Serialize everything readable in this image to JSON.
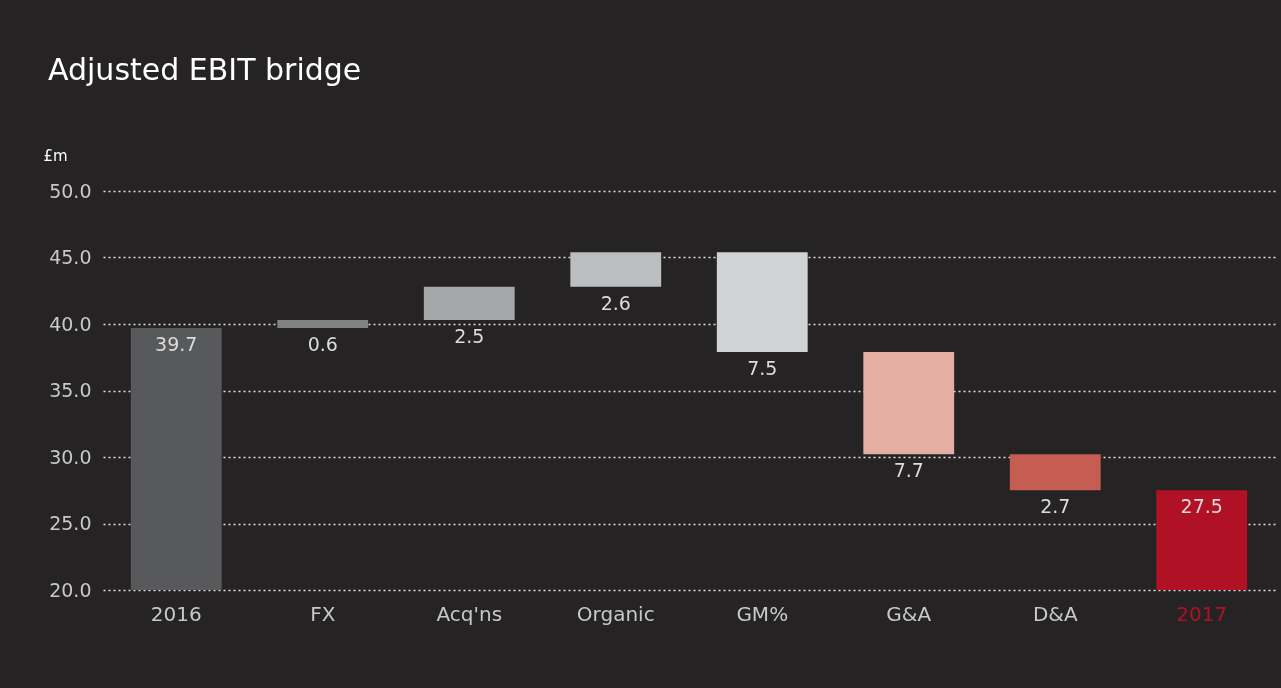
{
  "chart_data": {
    "type": "bar",
    "title": "Adjusted EBIT bridge",
    "ylabel": "£m",
    "categories": [
      "2016",
      "FX",
      "Acq'ns",
      "Organic",
      "GM%",
      "G&A",
      "D&A",
      "2017"
    ],
    "values": [
      39.7,
      0.6,
      2.5,
      2.6,
      7.5,
      7.7,
      2.7,
      27.5
    ],
    "base": [
      null,
      39.7,
      40.3,
      42.8,
      37.9,
      30.2,
      27.5,
      null
    ],
    "colors": [
      "#58595b",
      "#818284",
      "#a6a7a9",
      "#bcbdbf",
      "#d1d2d4",
      "#e3afa2",
      "#c65d52",
      "#b01125"
    ],
    "ylim": [
      20,
      50
    ],
    "yticks": [
      {
        "value": 20,
        "label": "20.0"
      },
      {
        "value": 25,
        "label": "25.0"
      },
      {
        "value": 30,
        "label": "30.0"
      },
      {
        "value": 35,
        "label": "35.0"
      },
      {
        "value": 40,
        "label": "40.0"
      },
      {
        "value": 45,
        "label": "45.0"
      },
      {
        "value": 50,
        "label": "50.0"
      }
    ],
    "grid": "y",
    "data_labels": true
  }
}
